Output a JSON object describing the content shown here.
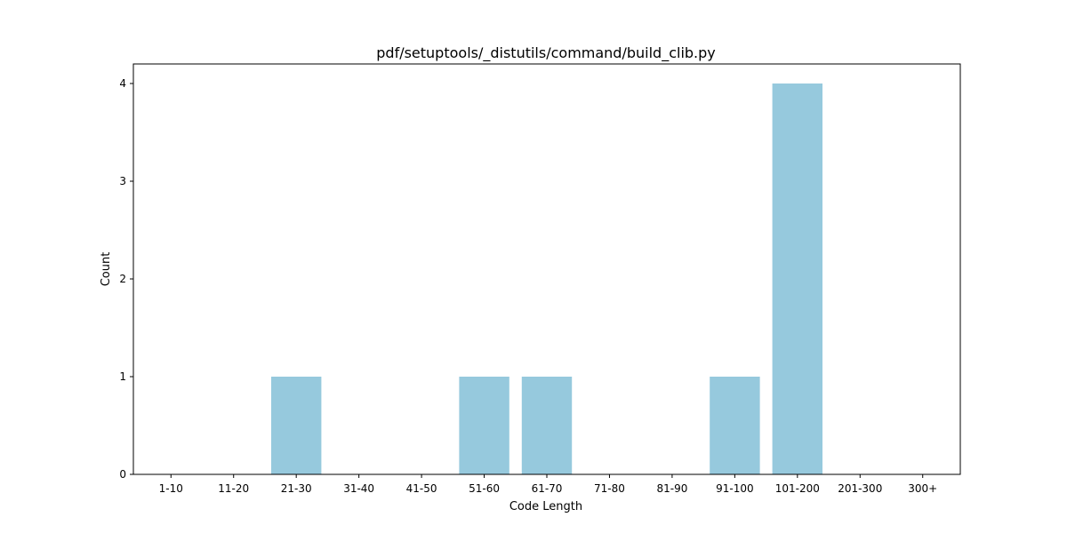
{
  "chart_data": {
    "type": "bar",
    "title": "pdf/setuptools/_distutils/command/build_clib.py",
    "xlabel": "Code Length",
    "ylabel": "Count",
    "categories": [
      "1-10",
      "11-20",
      "21-30",
      "31-40",
      "41-50",
      "51-60",
      "61-70",
      "71-80",
      "81-90",
      "91-100",
      "101-200",
      "201-300",
      "300+"
    ],
    "values": [
      0,
      0,
      1,
      0,
      0,
      1,
      1,
      0,
      0,
      1,
      4,
      0,
      0
    ],
    "ylim": [
      0,
      4.2
    ],
    "yticks": [
      0,
      1,
      2,
      3,
      4
    ],
    "grid": false,
    "colors": {
      "bar": "#96c9dd",
      "axis": "#000000"
    }
  }
}
